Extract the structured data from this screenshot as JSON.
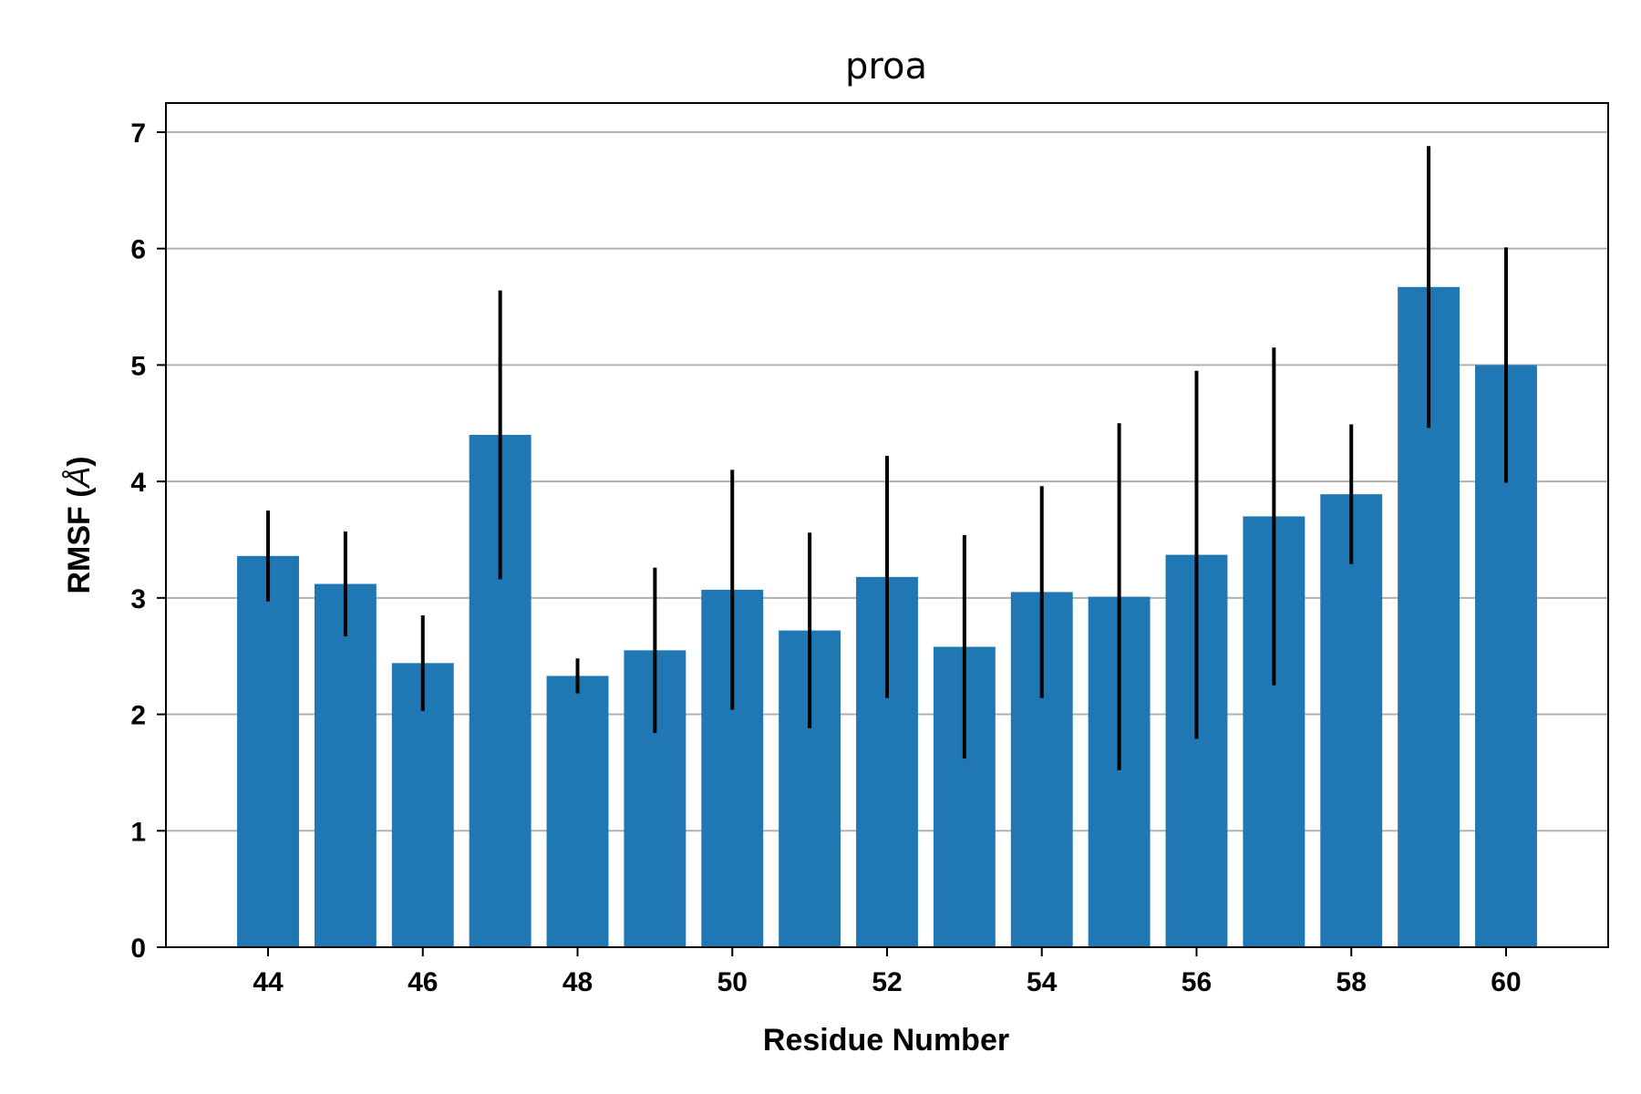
{
  "chart_data": {
    "type": "bar",
    "title": "proa",
    "xlabel": "Residue Number",
    "ylabel_main": "RMSF (",
    "ylabel_unit": "Å",
    "ylabel_close": ")",
    "x": [
      44,
      45,
      46,
      47,
      48,
      49,
      50,
      51,
      52,
      53,
      54,
      55,
      56,
      57,
      58,
      59,
      60
    ],
    "values": [
      3.36,
      3.12,
      2.44,
      4.4,
      2.33,
      2.55,
      3.07,
      2.72,
      3.18,
      2.58,
      3.05,
      3.01,
      3.37,
      3.7,
      3.89,
      5.67,
      5.0
    ],
    "errors": [
      0.39,
      0.45,
      0.41,
      1.24,
      0.15,
      0.71,
      1.03,
      0.84,
      1.04,
      0.96,
      0.91,
      1.49,
      1.58,
      1.45,
      0.6,
      1.21,
      1.01
    ],
    "xticks": [
      44,
      46,
      48,
      50,
      52,
      54,
      56,
      58,
      60
    ],
    "yticks": [
      0,
      1,
      2,
      3,
      4,
      5,
      6,
      7
    ],
    "xlim": [
      42.68,
      61.32
    ],
    "ylim": [
      0,
      7.25
    ],
    "grid": "y",
    "bar_color": "#1f77b4",
    "error_color": "#000000"
  }
}
